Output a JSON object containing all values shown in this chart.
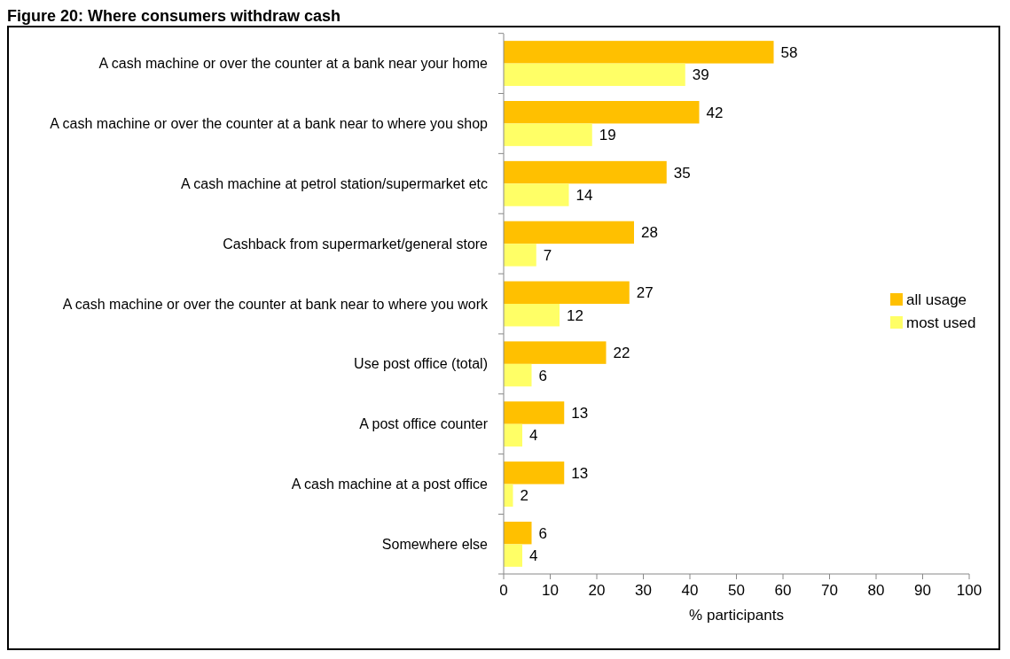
{
  "chart_data": {
    "type": "bar",
    "orientation": "horizontal",
    "title": "Figure 20: Where consumers withdraw cash",
    "xlabel": "% participants",
    "categories": [
      "A cash machine or over the counter at a bank near your home",
      "A cash machine or over the counter at a bank near to where you shop",
      "A cash machine at petrol station/supermarket etc",
      "Cashback from supermarket/general  store",
      "A cash machine or over the counter at bank near to where you work",
      "Use post office (total)",
      "A post office counter",
      "A cash machine at a post office",
      "Somewhere else"
    ],
    "series": [
      {
        "name": "all usage",
        "color": "#ffc000",
        "values": [
          58,
          42,
          35,
          28,
          27,
          22,
          13,
          13,
          6
        ]
      },
      {
        "name": "most used",
        "color": "#ffff66",
        "values": [
          39,
          19,
          14,
          7,
          12,
          6,
          4,
          2,
          4
        ]
      }
    ],
    "xlim": [
      0,
      100
    ],
    "xticks": [
      0,
      10,
      20,
      30,
      40,
      50,
      60,
      70,
      80,
      90,
      100
    ],
    "data_labels": true,
    "legend": "right",
    "grid": false
  }
}
